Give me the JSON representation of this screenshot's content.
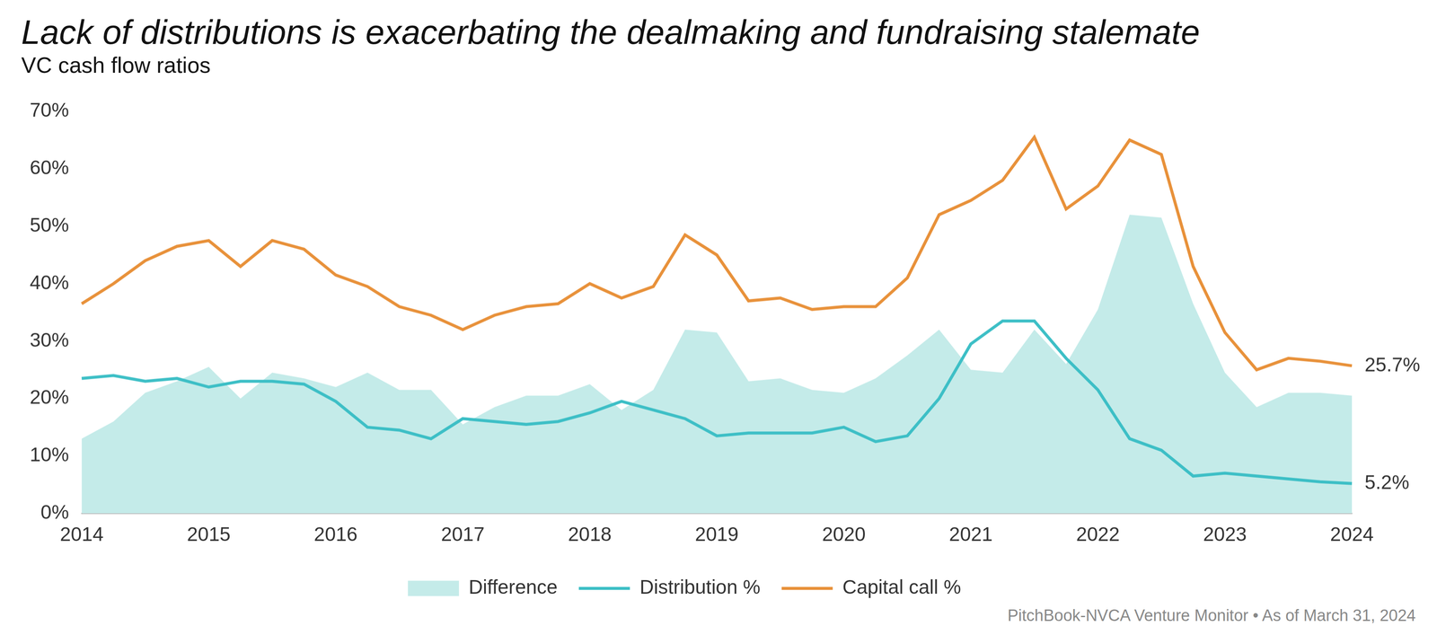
{
  "chart_data": {
    "type": "line",
    "title": "Lack of distributions is exacerbating the dealmaking and fundraising stalemate",
    "subtitle": "VC cash flow ratios",
    "source": "PitchBook-NVCA Venture Monitor • As of March 31, 2024",
    "categories": [
      "2014",
      null,
      null,
      null,
      "2015",
      null,
      null,
      null,
      "2016",
      null,
      null,
      null,
      "2017",
      null,
      null,
      null,
      "2018",
      null,
      null,
      null,
      "2019",
      null,
      null,
      null,
      "2020",
      null,
      null,
      null,
      "2021",
      null,
      null,
      null,
      "2022",
      null,
      null,
      null,
      "2023",
      null,
      null,
      null,
      "2024"
    ],
    "series": [
      {
        "name": "Difference",
        "type": "area",
        "color": "#c4ebe9",
        "values": [
          13,
          16,
          21,
          23,
          25.5,
          20,
          24.5,
          23.5,
          22,
          24.5,
          21.5,
          21.5,
          15.5,
          18.5,
          20.5,
          20.5,
          22.5,
          18,
          21.5,
          32,
          31.5,
          23,
          23.5,
          21.5,
          21,
          23.5,
          27.5,
          32,
          25,
          24.5,
          32,
          26,
          35.5,
          52,
          51.5,
          36.5,
          24.5,
          18.5,
          21,
          21,
          20.5
        ]
      },
      {
        "name": "Distribution %",
        "type": "line",
        "color": "#3dbfc6",
        "values": [
          23.5,
          24,
          23,
          23.5,
          22,
          23,
          23,
          22.5,
          19.5,
          15,
          14.5,
          13,
          16.5,
          16,
          15.5,
          16,
          17.5,
          19.5,
          18,
          16.5,
          13.5,
          14,
          14,
          14,
          15,
          12.5,
          13.5,
          20,
          29.5,
          33.5,
          33.5,
          27,
          21.5,
          13,
          11,
          6.5,
          7,
          6.5,
          6,
          5.5,
          5.2
        ]
      },
      {
        "name": "Capital call %",
        "type": "line",
        "color": "#e8913a",
        "values": [
          36.5,
          40,
          44,
          46.5,
          47.5,
          43,
          47.5,
          46,
          41.5,
          39.5,
          36,
          34.5,
          32,
          34.5,
          36,
          36.5,
          40,
          37.5,
          39.5,
          48.5,
          45,
          37,
          37.5,
          35.5,
          36,
          36,
          41,
          52,
          54.5,
          58,
          65.5,
          53,
          57,
          65,
          62.5,
          43,
          31.5,
          25,
          27,
          26.5,
          25.7
        ]
      }
    ],
    "annotations": [
      {
        "series": "Capital call %",
        "text": "25.7%"
      },
      {
        "series": "Distribution %",
        "text": "5.2%"
      }
    ],
    "ylim": [
      0,
      70
    ],
    "yticks": [
      {
        "value": 0,
        "label": "0%"
      },
      {
        "value": 10,
        "label": "10%"
      },
      {
        "value": 20,
        "label": "20%"
      },
      {
        "value": 30,
        "label": "30%"
      },
      {
        "value": 40,
        "label": "40%"
      },
      {
        "value": 50,
        "label": "50%"
      },
      {
        "value": 60,
        "label": "60%"
      },
      {
        "value": 70,
        "label": "70%"
      }
    ],
    "grid": false,
    "legend": "bottom"
  }
}
